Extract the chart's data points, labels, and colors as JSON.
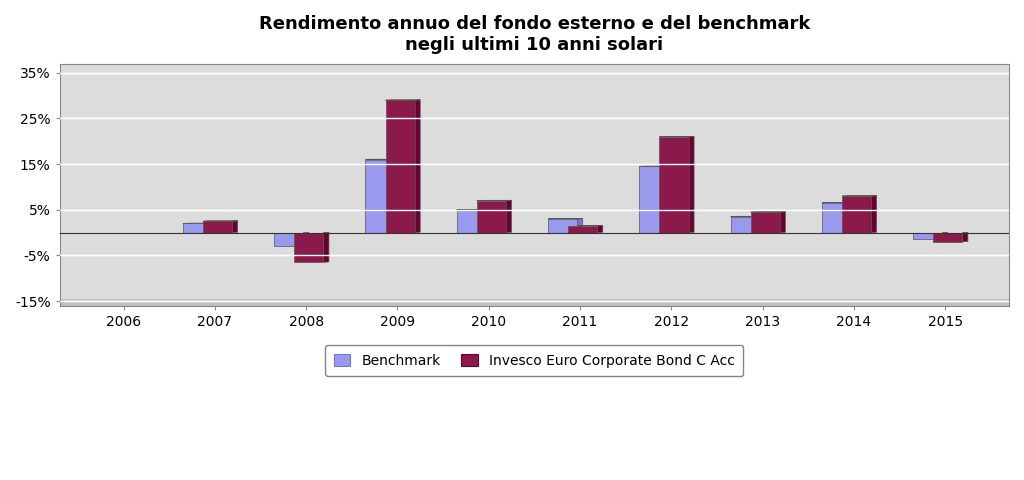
{
  "title_line1": "Rendimento annuo del fondo esterno e del benchmark",
  "title_line2": "negli ultimi 10 anni solari",
  "years": [
    2006,
    2007,
    2008,
    2009,
    2010,
    2011,
    2012,
    2013,
    2014,
    2015
  ],
  "benchmark": [
    0.0,
    2.0,
    -3.0,
    16.0,
    5.0,
    3.0,
    14.5,
    3.5,
    6.5,
    -1.5
  ],
  "fund": [
    0.0,
    2.5,
    -6.5,
    29.0,
    7.0,
    1.5,
    21.0,
    4.5,
    8.0,
    -2.0
  ],
  "benchmark_color": "#9999EE",
  "benchmark_dark": "#7777CC",
  "fund_color": "#8B1A4A",
  "fund_dark": "#6B0030",
  "ylim_min": -15,
  "ylim_max": 37,
  "yticks": [
    -15,
    -5,
    5,
    15,
    25,
    35
  ],
  "ytick_labels": [
    "-15%",
    "-5%",
    "5%",
    "15%",
    "25%",
    "35%"
  ],
  "legend_benchmark": "Benchmark",
  "legend_fund": "Invesco Euro Corporate Bond C Acc",
  "background_fig": "#FFFFFF",
  "background_plot": "#DCDCDC",
  "grid_color": "#FFFFFF",
  "bar_width": 0.32,
  "title_fontsize": 13,
  "axis_fontsize": 10,
  "legend_fontsize": 10
}
